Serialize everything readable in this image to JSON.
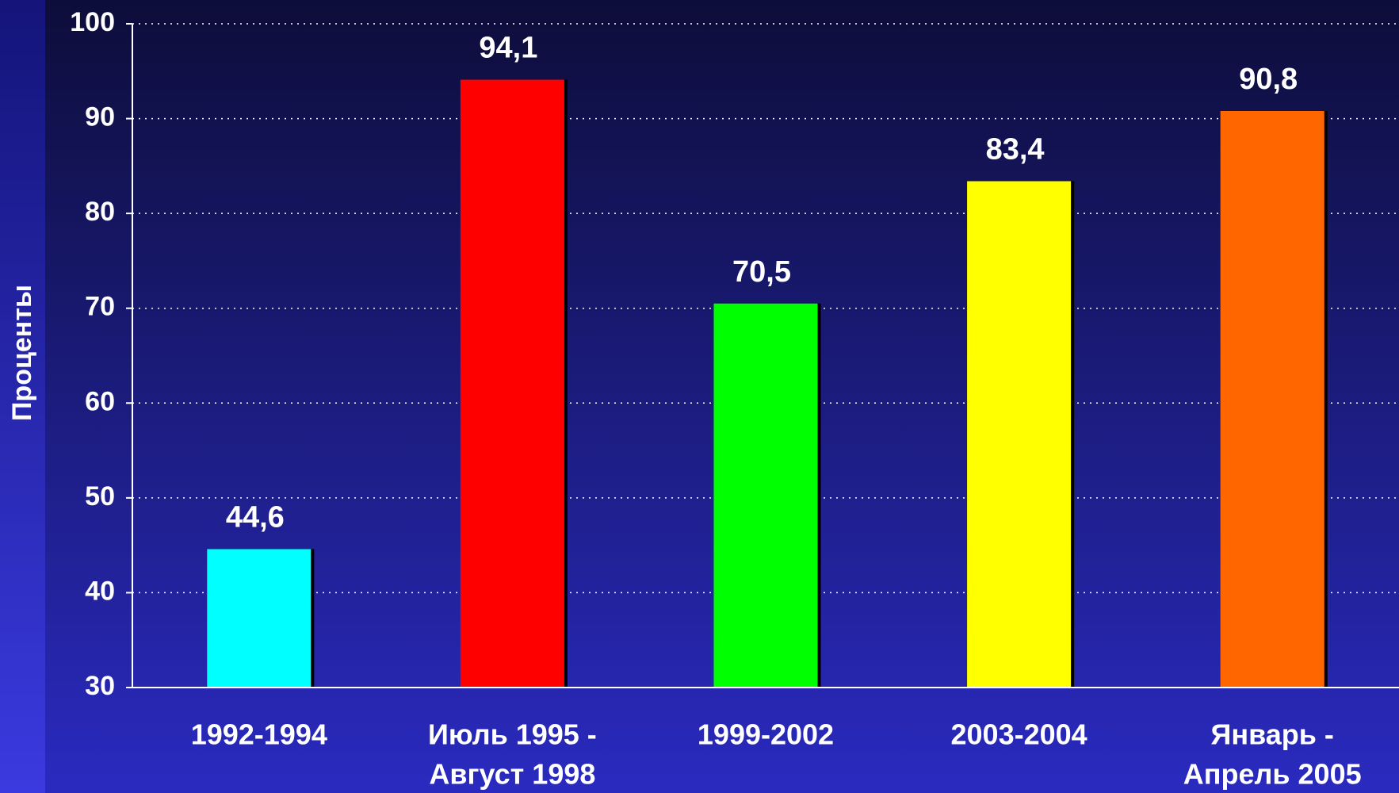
{
  "chart_data": {
    "type": "bar",
    "y_label": "Проценты",
    "categories": [
      [
        "1992-1994"
      ],
      [
        "Июль 1995 -",
        "Август 1998"
      ],
      [
        "1999-2002"
      ],
      [
        "2003-2004"
      ],
      [
        "Январь -",
        "Апрель 2005"
      ]
    ],
    "values": [
      44.6,
      94.1,
      70.5,
      83.4,
      90.8
    ],
    "value_labels": [
      "44,6",
      "94,1",
      "70,5",
      "83,4",
      "90,8"
    ],
    "colors": [
      "#00ffff",
      "#ff0000",
      "#00ff00",
      "#ffff00",
      "#ff6600"
    ],
    "ylim": [
      30,
      100
    ],
    "yticks": [
      30,
      40,
      50,
      60,
      70,
      80,
      90,
      100
    ],
    "grid": true
  }
}
